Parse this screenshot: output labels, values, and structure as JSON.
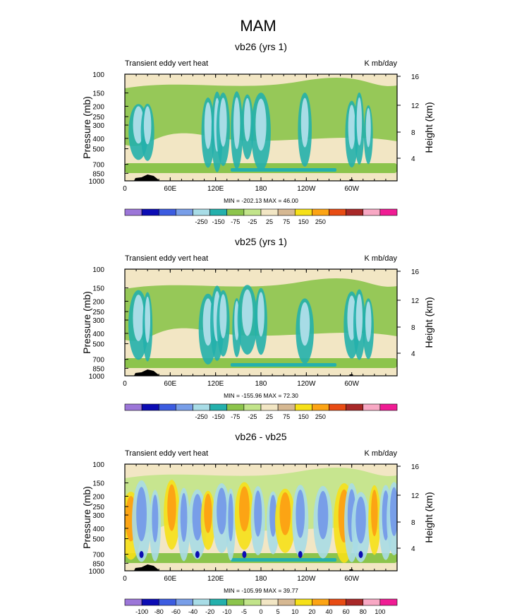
{
  "title": "MAM",
  "colors": {
    "background": "#ffffff",
    "axis": "#000000",
    "topography": "#000000"
  },
  "chart_data": [
    {
      "type": "heatmap",
      "name": "vb26",
      "title": "vb26 (yrs 1)",
      "left_label": "Transient eddy vert heat",
      "right_label": "K mb/day",
      "ylabel": "Pressure (mb)",
      "ylabel_right": "Height (km)",
      "x_ticks": [
        "0",
        "60E",
        "120E",
        "180",
        "120W",
        "60W"
      ],
      "x_tick_lon": [
        0,
        60,
        120,
        180,
        240,
        300
      ],
      "xlim": [
        0,
        360
      ],
      "y_ticks": [
        "100",
        "150",
        "200",
        "250",
        "300",
        "400",
        "500",
        "700",
        "850",
        "1000"
      ],
      "y_tick_p": [
        100,
        150,
        200,
        250,
        300,
        400,
        500,
        700,
        850,
        1000
      ],
      "ylim": [
        1000,
        100
      ],
      "height_ticks": [
        "4",
        "8",
        "12",
        "16"
      ],
      "height_tick_km": [
        4,
        8,
        12,
        16
      ],
      "stats": "MIN = -202.13  MAX =  46.00",
      "min": -202.13,
      "max": 46.0,
      "colorbar_labels": [
        "-250",
        "-150",
        "-75",
        "-25",
        "25",
        "75",
        "150",
        "250"
      ],
      "colorbar_colors": [
        "#9c76d8",
        "#0c0cb4",
        "#3c5ce0",
        "#789ee8",
        "#a8dce6",
        "#24b0ac",
        "#8cc44c",
        "#c2e48a",
        "#f2e6c4",
        "#d6b892",
        "#f6e018",
        "#fca414",
        "#e84c14",
        "#a82828",
        "#f8a8c4",
        "#f01c94"
      ]
    },
    {
      "type": "heatmap",
      "name": "vb25",
      "title": "vb25 (yrs 1)",
      "left_label": "Transient eddy vert heat",
      "right_label": "K mb/day",
      "ylabel": "Pressure (mb)",
      "ylabel_right": "Height (km)",
      "x_ticks": [
        "0",
        "60E",
        "120E",
        "180",
        "120W",
        "60W"
      ],
      "x_tick_lon": [
        0,
        60,
        120,
        180,
        240,
        300
      ],
      "xlim": [
        0,
        360
      ],
      "y_ticks": [
        "100",
        "150",
        "200",
        "250",
        "300",
        "400",
        "500",
        "700",
        "850",
        "1000"
      ],
      "y_tick_p": [
        100,
        150,
        200,
        250,
        300,
        400,
        500,
        700,
        850,
        1000
      ],
      "ylim": [
        1000,
        100
      ],
      "height_ticks": [
        "4",
        "8",
        "12",
        "16"
      ],
      "height_tick_km": [
        4,
        8,
        12,
        16
      ],
      "stats": "MIN = -155.96  MAX =  72.30",
      "min": -155.96,
      "max": 72.3,
      "colorbar_labels": [
        "-250",
        "-150",
        "-75",
        "-25",
        "25",
        "75",
        "150",
        "250"
      ],
      "colorbar_colors": [
        "#9c76d8",
        "#0c0cb4",
        "#3c5ce0",
        "#789ee8",
        "#a8dce6",
        "#24b0ac",
        "#8cc44c",
        "#c2e48a",
        "#f2e6c4",
        "#d6b892",
        "#f6e018",
        "#fca414",
        "#e84c14",
        "#a82828",
        "#f8a8c4",
        "#f01c94"
      ]
    },
    {
      "type": "heatmap",
      "name": "diff",
      "title": "vb26 - vb25",
      "left_label": "Transient eddy vert heat",
      "right_label": "K mb/day",
      "ylabel": "Pressure (mb)",
      "ylabel_right": "Height (km)",
      "x_ticks": [
        "0",
        "60E",
        "120E",
        "180",
        "120W",
        "60W"
      ],
      "x_tick_lon": [
        0,
        60,
        120,
        180,
        240,
        300
      ],
      "xlim": [
        0,
        360
      ],
      "y_ticks": [
        "100",
        "150",
        "200",
        "250",
        "300",
        "400",
        "500",
        "700",
        "850",
        "1000"
      ],
      "y_tick_p": [
        100,
        150,
        200,
        250,
        300,
        400,
        500,
        700,
        850,
        1000
      ],
      "ylim": [
        1000,
        100
      ],
      "height_ticks": [
        "4",
        "8",
        "12",
        "16"
      ],
      "height_tick_km": [
        4,
        8,
        12,
        16
      ],
      "stats": "MIN = -105.99  MAX =  39.77",
      "min": -105.99,
      "max": 39.77,
      "colorbar_labels": [
        "-100",
        "-80",
        "-60",
        "-40",
        "-20",
        "-10",
        "-5",
        "0",
        "5",
        "10",
        "20",
        "40",
        "60",
        "80",
        "100"
      ],
      "colorbar_colors": [
        "#9c76d8",
        "#0c0cb4",
        "#3c5ce0",
        "#789ee8",
        "#a8dce6",
        "#24b0ac",
        "#8cc44c",
        "#c2e48a",
        "#f2e6c4",
        "#d6b892",
        "#f6e018",
        "#fca414",
        "#e84c14",
        "#a82828",
        "#f8a8c4",
        "#f01c94"
      ]
    }
  ]
}
